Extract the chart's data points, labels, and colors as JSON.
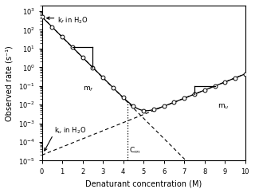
{
  "title": "",
  "xlabel": "Denaturant concentration (M)",
  "ylabel": "Observed rate (s⁻¹)",
  "xlim": [
    0,
    10
  ],
  "x_ticks": [
    0,
    1,
    2,
    3,
    4,
    5,
    6,
    7,
    8,
    9,
    10
  ],
  "kf_H2O": 500.0,
  "mf_slope": -2.5,
  "ku_H2O": 2e-05,
  "mu_slope": 1.0,
  "Cm": 4.2,
  "background_color": "#ffffff",
  "line_color": "#000000",
  "marker_color": "#ffffff",
  "marker_edge": "#000000",
  "bracket_mf_x1": 1.5,
  "bracket_mf_x2": 2.5,
  "bracket_mu_x1": 7.5,
  "bracket_mu_x2": 8.5,
  "ylim": [
    1e-05,
    2000.0
  ]
}
